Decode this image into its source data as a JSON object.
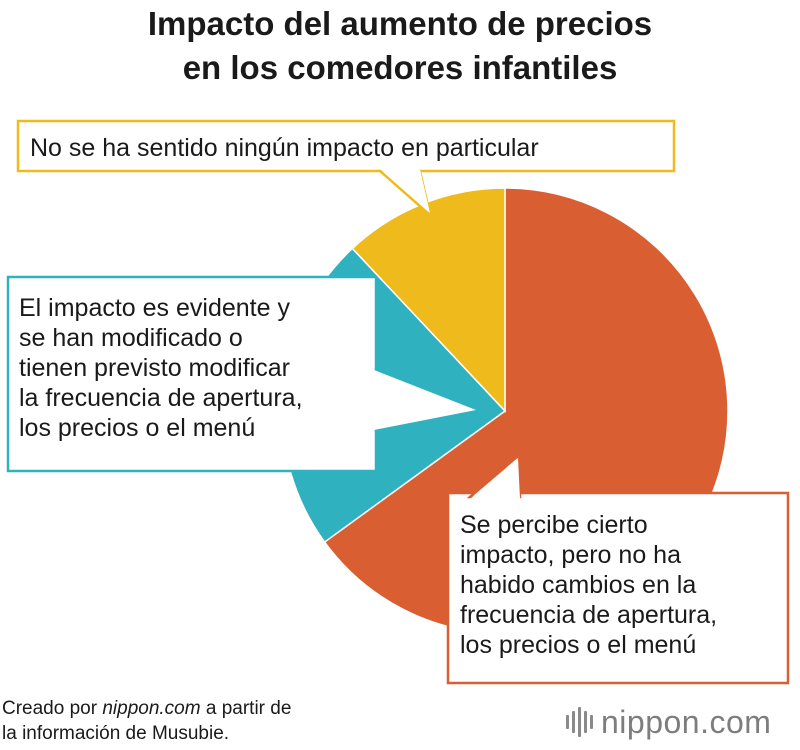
{
  "title": {
    "line1": "Impacto del aumento de precios",
    "line2": "en los comedores infantiles"
  },
  "chart_data": {
    "type": "pie",
    "start_angle_deg": 0,
    "direction": "clockwise",
    "slices": [
      {
        "label_lines": [
          "Se percibe cierto",
          "impacto, pero no ha",
          "habido cambios en la",
          "frecuencia de apertura,",
          "los precios o el menú"
        ],
        "value": 65,
        "color": "#d95f33"
      },
      {
        "label_lines": [
          "El impacto es evidente y",
          "se han modificado o",
          "tienen previsto modificar",
          "la frecuencia de apertura,",
          "los precios o el menú"
        ],
        "value": 23,
        "color": "#2fb1c0"
      },
      {
        "label_lines": [
          "No se ha sentido ningún impacto en particular"
        ],
        "value": 12,
        "color": "#efbb1c"
      }
    ]
  },
  "source": {
    "prefix": "Creado por ",
    "site": "nippon.com",
    "suffix": " a partir de",
    "line2": "la información de Musubie."
  },
  "logo": {
    "text": "nippon.com"
  }
}
